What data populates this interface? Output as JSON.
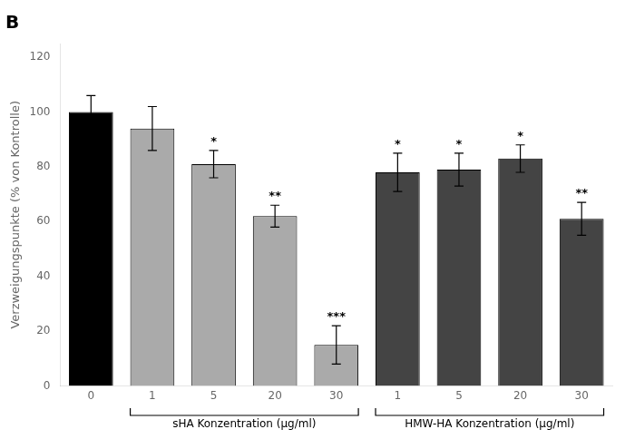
{
  "chart_data": {
    "type": "bar",
    "title": "B",
    "ylabel": "Verzweigungspunkte (% von Kontrolle)",
    "categories": [
      "0",
      "1",
      "5",
      "20",
      "30",
      "1",
      "5",
      "20",
      "30"
    ],
    "values": [
      100,
      94,
      81,
      62,
      15,
      78,
      79,
      83,
      61
    ],
    "errors": [
      6,
      8,
      5,
      4,
      7,
      7,
      6,
      5,
      6
    ],
    "significance": [
      null,
      null,
      "*",
      "**",
      "***",
      "*",
      "*",
      "*",
      "**"
    ],
    "colors": [
      "#000000",
      "#aaaaaa",
      "#aaaaaa",
      "#aaaaaa",
      "#aaaaaa",
      "#444444",
      "#444444",
      "#444444",
      "#444444"
    ],
    "ylim": [
      0,
      125
    ],
    "yticks": [
      0,
      20,
      40,
      60,
      80,
      100,
      120
    ],
    "grid": false,
    "annotations": [
      {
        "text": "sHA Konzentration (μg/ml)",
        "from": 1,
        "to": 4
      },
      {
        "text": "HMW-HA Konzentration (μg/ml)",
        "from": 5,
        "to": 8
      }
    ]
  }
}
